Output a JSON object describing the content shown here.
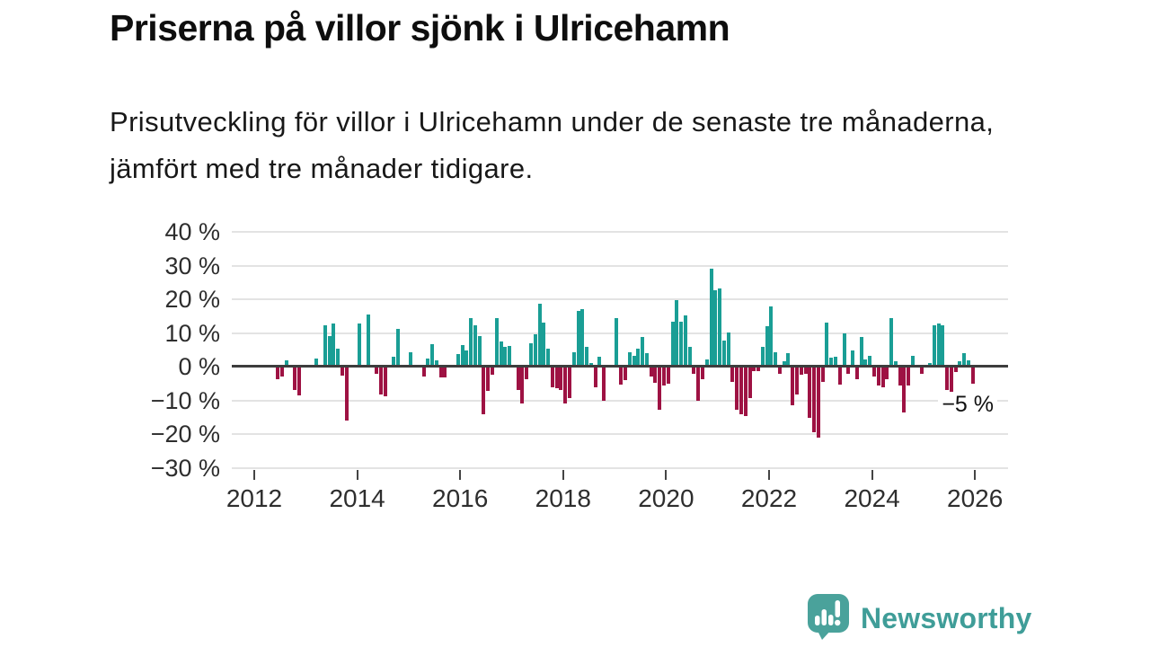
{
  "header": {
    "title": "Priserna på villor sjönk i Ulricehamn",
    "subtitle": "Prisutveckling för villor i Ulricehamn under de senaste tre månaderna, jämfört med tre månader tidigare."
  },
  "chart_data": {
    "type": "bar",
    "title": "Priserna på villor sjönk i Ulricehamn",
    "xlabel": "",
    "ylabel": "",
    "unit": "%",
    "frequency": "monthly",
    "start": "2012-01",
    "end": "2025-12",
    "grid": true,
    "legend": "none",
    "ylim": [
      -30,
      40
    ],
    "xlim": [
      2011.6,
      2026.7
    ],
    "colors": {
      "positive": "#1a9e95",
      "negative": "#9e1243",
      "gridline": "#e3e3e3",
      "zeroline": "#3d3d3d"
    },
    "y_axis": {
      "ticks": [
        40,
        30,
        20,
        10,
        0,
        -10,
        -20,
        -30
      ],
      "labels": [
        "40 %",
        "30 %",
        "20 %",
        "10 %",
        "0 %",
        "−10 %",
        "−20 %",
        "−30 %"
      ]
    },
    "x_axis": {
      "ticks": [
        2012,
        2014,
        2016,
        2018,
        2020,
        2022,
        2024,
        2026
      ],
      "labels": [
        "2012",
        "2014",
        "2016",
        "2018",
        "2020",
        "2022",
        "2024",
        "2026"
      ]
    },
    "annotation": {
      "label": "−5 %",
      "value": -5,
      "position": "last-bar"
    },
    "values": [
      0,
      0,
      0,
      0,
      0,
      -3.8,
      -2.8,
      1.9,
      0.6,
      -7.0,
      -8.5,
      0,
      0,
      0,
      2.4,
      0,
      12.4,
      9.0,
      12.9,
      5.3,
      -2.7,
      -16.0,
      0,
      0,
      12.7,
      0,
      15.4,
      0,
      -2.0,
      -8.3,
      -8.9,
      0,
      2.9,
      11.3,
      0,
      0,
      4.2,
      0,
      0,
      -3.0,
      2.4,
      6.7,
      1.8,
      -3.3,
      -3.1,
      0,
      0,
      3.7,
      6.4,
      4.7,
      14.4,
      12.4,
      9.1,
      -14.0,
      -7.1,
      -2.4,
      14.4,
      7.4,
      6.0,
      6.1,
      0,
      -7.0,
      -10.9,
      -3.6,
      6.9,
      9.5,
      18.7,
      13.1,
      5.3,
      -6.0,
      -6.5,
      -7.0,
      -10.9,
      -9.3,
      4.2,
      16.6,
      17.2,
      5.9,
      1.1,
      -6.2,
      2.9,
      -10.0,
      0,
      0,
      14.3,
      -5.3,
      -4.0,
      4.2,
      3.3,
      5.3,
      8.9,
      4.0,
      -2.9,
      -4.7,
      -12.7,
      -5.6,
      -5.1,
      13.3,
      19.8,
      13.3,
      15.1,
      5.8,
      -2.2,
      -10.0,
      -3.8,
      2.2,
      29.1,
      22.7,
      23.1,
      7.7,
      10.2,
      -4.4,
      -12.9,
      -14.2,
      -14.7,
      -9.3,
      -1.2,
      -1.3,
      5.8,
      12.0,
      18.0,
      4.4,
      -2.0,
      1.5,
      4.0,
      -11.5,
      -8.3,
      -2.3,
      -2.0,
      -15.2,
      -19.5,
      -21.0,
      -4.5,
      13.1,
      2.7,
      2.9,
      -5.3,
      9.8,
      -2.0,
      4.9,
      -3.6,
      8.9,
      2.2,
      3.1,
      -2.9,
      -5.6,
      -6.0,
      -3.6,
      14.5,
      1.5,
      -5.6,
      -13.6,
      -5.6,
      3.1,
      0,
      -2.0,
      0,
      1.0,
      12.2,
      12.7,
      12.4,
      -7.0,
      -7.4,
      -1.5,
      1.5,
      4.0,
      2.0,
      -5.0
    ]
  },
  "footer": {
    "brand": "Newsworthy",
    "brand_color": "#3f9d98"
  }
}
